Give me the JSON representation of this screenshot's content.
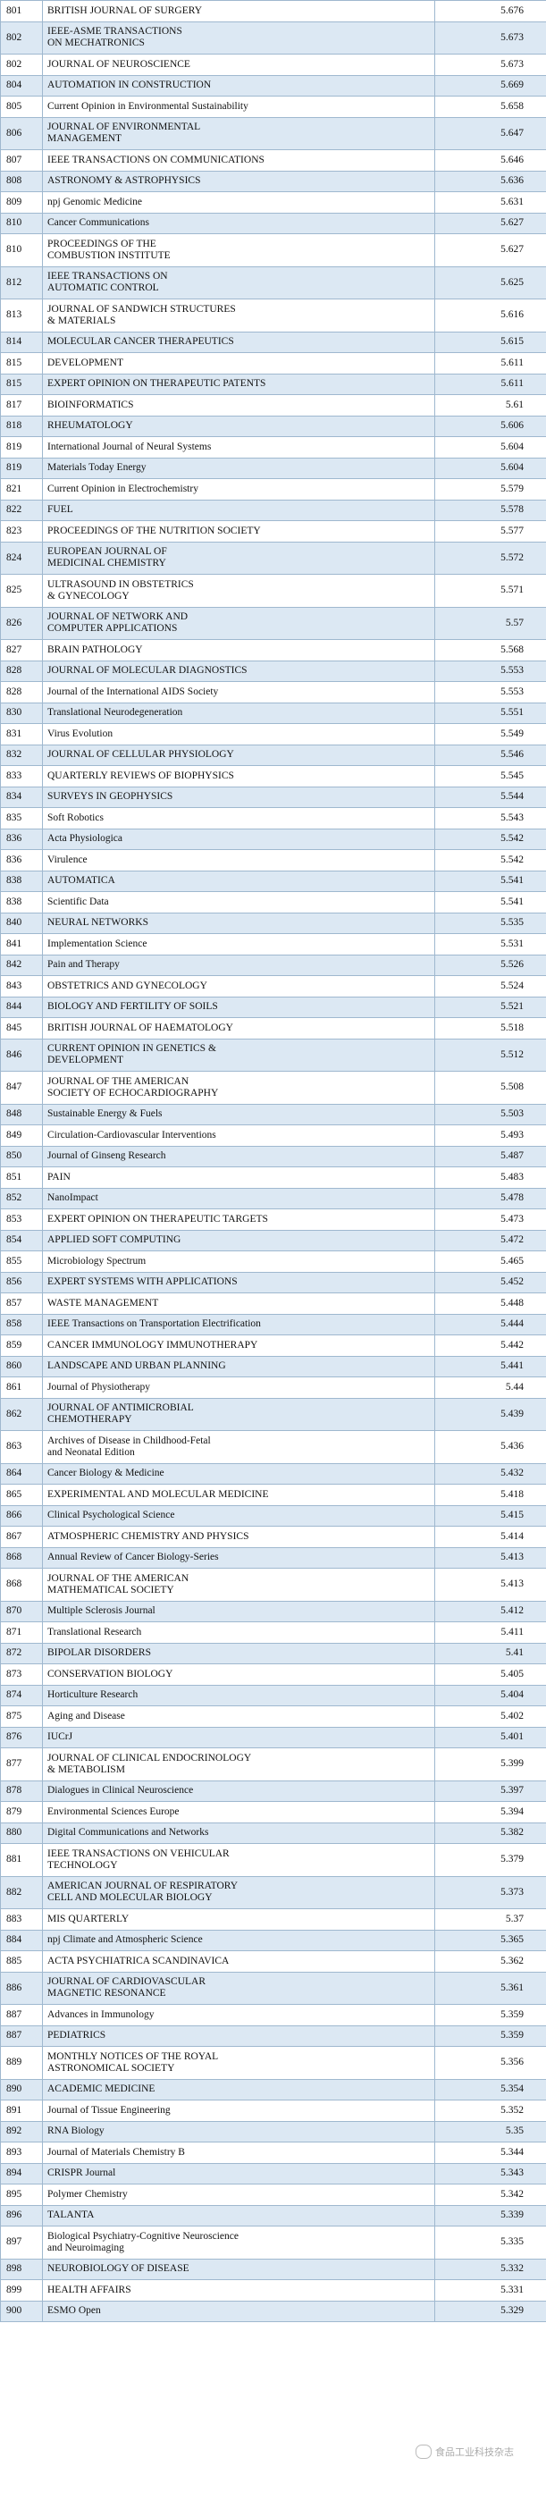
{
  "rows": [
    {
      "rank": "801",
      "name": "BRITISH JOURNAL OF SURGERY",
      "score": "5.676"
    },
    {
      "rank": "802",
      "name": "IEEE-ASME TRANSACTIONS\nON MECHATRONICS",
      "score": "5.673"
    },
    {
      "rank": "802",
      "name": "JOURNAL OF NEUROSCIENCE",
      "score": "5.673"
    },
    {
      "rank": "804",
      "name": "AUTOMATION IN CONSTRUCTION",
      "score": "5.669"
    },
    {
      "rank": "805",
      "name": "Current Opinion in Environmental Sustainability",
      "score": "5.658"
    },
    {
      "rank": "806",
      "name": "JOURNAL OF ENVIRONMENTAL\nMANAGEMENT",
      "score": "5.647"
    },
    {
      "rank": "807",
      "name": "IEEE TRANSACTIONS ON COMMUNICATIONS",
      "score": "5.646"
    },
    {
      "rank": "808",
      "name": "ASTRONOMY & ASTROPHYSICS",
      "score": "5.636"
    },
    {
      "rank": "809",
      "name": "npj Genomic Medicine",
      "score": "5.631"
    },
    {
      "rank": "810",
      "name": "Cancer Communications",
      "score": "5.627"
    },
    {
      "rank": "810",
      "name": "PROCEEDINGS OF THE\nCOMBUSTION INSTITUTE",
      "score": "5.627"
    },
    {
      "rank": "812",
      "name": "IEEE TRANSACTIONS ON\nAUTOMATIC CONTROL",
      "score": "5.625"
    },
    {
      "rank": "813",
      "name": "JOURNAL OF SANDWICH STRUCTURES\n& MATERIALS",
      "score": "5.616"
    },
    {
      "rank": "814",
      "name": "MOLECULAR CANCER THERAPEUTICS",
      "score": "5.615"
    },
    {
      "rank": "815",
      "name": "DEVELOPMENT",
      "score": "5.611"
    },
    {
      "rank": "815",
      "name": "EXPERT OPINION ON THERAPEUTIC PATENTS",
      "score": "5.611"
    },
    {
      "rank": "817",
      "name": "BIOINFORMATICS",
      "score": "5.61"
    },
    {
      "rank": "818",
      "name": "RHEUMATOLOGY",
      "score": "5.606"
    },
    {
      "rank": "819",
      "name": "International Journal of Neural Systems",
      "score": "5.604"
    },
    {
      "rank": "819",
      "name": "Materials Today Energy",
      "score": "5.604"
    },
    {
      "rank": "821",
      "name": "Current Opinion in Electrochemistry",
      "score": "5.579"
    },
    {
      "rank": "822",
      "name": "FUEL",
      "score": "5.578"
    },
    {
      "rank": "823",
      "name": "PROCEEDINGS OF THE NUTRITION SOCIETY",
      "score": "5.577"
    },
    {
      "rank": "824",
      "name": "EUROPEAN JOURNAL OF\nMEDICINAL CHEMISTRY",
      "score": "5.572"
    },
    {
      "rank": "825",
      "name": "ULTRASOUND IN OBSTETRICS\n& GYNECOLOGY",
      "score": "5.571"
    },
    {
      "rank": "826",
      "name": "JOURNAL OF NETWORK AND\nCOMPUTER APPLICATIONS",
      "score": "5.57"
    },
    {
      "rank": "827",
      "name": "BRAIN PATHOLOGY",
      "score": "5.568"
    },
    {
      "rank": "828",
      "name": "JOURNAL OF MOLECULAR DIAGNOSTICS",
      "score": "5.553"
    },
    {
      "rank": "828",
      "name": "Journal of the International AIDS Society",
      "score": "5.553"
    },
    {
      "rank": "830",
      "name": "Translational Neurodegeneration",
      "score": "5.551"
    },
    {
      "rank": "831",
      "name": "Virus Evolution",
      "score": "5.549"
    },
    {
      "rank": "832",
      "name": "JOURNAL OF CELLULAR PHYSIOLOGY",
      "score": "5.546"
    },
    {
      "rank": "833",
      "name": "QUARTERLY REVIEWS OF BIOPHYSICS",
      "score": "5.545"
    },
    {
      "rank": "834",
      "name": "SURVEYS IN GEOPHYSICS",
      "score": "5.544"
    },
    {
      "rank": "835",
      "name": "Soft Robotics",
      "score": "5.543"
    },
    {
      "rank": "836",
      "name": "Acta Physiologica",
      "score": "5.542"
    },
    {
      "rank": "836",
      "name": "Virulence",
      "score": "5.542"
    },
    {
      "rank": "838",
      "name": "AUTOMATICA",
      "score": "5.541"
    },
    {
      "rank": "838",
      "name": "Scientific Data",
      "score": "5.541"
    },
    {
      "rank": "840",
      "name": "NEURAL NETWORKS",
      "score": "5.535"
    },
    {
      "rank": "841",
      "name": "Implementation Science",
      "score": "5.531"
    },
    {
      "rank": "842",
      "name": "Pain and Therapy",
      "score": "5.526"
    },
    {
      "rank": "843",
      "name": "OBSTETRICS AND GYNECOLOGY",
      "score": "5.524"
    },
    {
      "rank": "844",
      "name": "BIOLOGY AND FERTILITY OF SOILS",
      "score": "5.521"
    },
    {
      "rank": "845",
      "name": "BRITISH JOURNAL OF HAEMATOLOGY",
      "score": "5.518"
    },
    {
      "rank": "846",
      "name": "CURRENT OPINION IN GENETICS &\nDEVELOPMENT",
      "score": "5.512"
    },
    {
      "rank": "847",
      "name": "JOURNAL OF THE AMERICAN\nSOCIETY OF ECHOCARDIOGRAPHY",
      "score": "5.508"
    },
    {
      "rank": "848",
      "name": "Sustainable Energy & Fuels",
      "score": "5.503"
    },
    {
      "rank": "849",
      "name": "Circulation-Cardiovascular Interventions",
      "score": "5.493"
    },
    {
      "rank": "850",
      "name": "Journal of Ginseng Research",
      "score": "5.487"
    },
    {
      "rank": "851",
      "name": "PAIN",
      "score": "5.483"
    },
    {
      "rank": "852",
      "name": "NanoImpact",
      "score": "5.478"
    },
    {
      "rank": "853",
      "name": "EXPERT OPINION ON THERAPEUTIC TARGETS",
      "score": "5.473"
    },
    {
      "rank": "854",
      "name": "APPLIED SOFT COMPUTING",
      "score": "5.472"
    },
    {
      "rank": "855",
      "name": "Microbiology Spectrum",
      "score": "5.465"
    },
    {
      "rank": "856",
      "name": "EXPERT SYSTEMS WITH APPLICATIONS",
      "score": "5.452"
    },
    {
      "rank": "857",
      "name": "WASTE MANAGEMENT",
      "score": "5.448"
    },
    {
      "rank": "858",
      "name": "IEEE Transactions on Transportation Electrification",
      "score": "5.444"
    },
    {
      "rank": "859",
      "name": "CANCER IMMUNOLOGY IMMUNOTHERAPY",
      "score": "5.442"
    },
    {
      "rank": "860",
      "name": "LANDSCAPE AND URBAN PLANNING",
      "score": "5.441"
    },
    {
      "rank": "861",
      "name": "Journal of Physiotherapy",
      "score": "5.44"
    },
    {
      "rank": "862",
      "name": "JOURNAL OF ANTIMICROBIAL\nCHEMOTHERAPY",
      "score": "5.439"
    },
    {
      "rank": "863",
      "name": "Archives of Disease in Childhood-Fetal\nand Neonatal Edition",
      "score": "5.436"
    },
    {
      "rank": "864",
      "name": "Cancer Biology & Medicine",
      "score": "5.432"
    },
    {
      "rank": "865",
      "name": "EXPERIMENTAL AND MOLECULAR MEDICINE",
      "score": "5.418"
    },
    {
      "rank": "866",
      "name": "Clinical Psychological Science",
      "score": "5.415"
    },
    {
      "rank": "867",
      "name": "ATMOSPHERIC CHEMISTRY AND PHYSICS",
      "score": "5.414"
    },
    {
      "rank": "868",
      "name": "Annual Review of Cancer Biology-Series",
      "score": "5.413"
    },
    {
      "rank": "868",
      "name": "JOURNAL OF THE AMERICAN\nMATHEMATICAL SOCIETY",
      "score": "5.413"
    },
    {
      "rank": "870",
      "name": "Multiple Sclerosis Journal",
      "score": "5.412"
    },
    {
      "rank": "871",
      "name": "Translational Research",
      "score": "5.411"
    },
    {
      "rank": "872",
      "name": "BIPOLAR DISORDERS",
      "score": "5.41"
    },
    {
      "rank": "873",
      "name": "CONSERVATION BIOLOGY",
      "score": "5.405"
    },
    {
      "rank": "874",
      "name": "Horticulture Research",
      "score": "5.404"
    },
    {
      "rank": "875",
      "name": "Aging and Disease",
      "score": "5.402"
    },
    {
      "rank": "876",
      "name": "IUCrJ",
      "score": "5.401"
    },
    {
      "rank": "877",
      "name": "JOURNAL OF CLINICAL ENDOCRINOLOGY\n& METABOLISM",
      "score": "5.399"
    },
    {
      "rank": "878",
      "name": "Dialogues in Clinical Neuroscience",
      "score": "5.397"
    },
    {
      "rank": "879",
      "name": "Environmental Sciences Europe",
      "score": "5.394"
    },
    {
      "rank": "880",
      "name": "Digital Communications and Networks",
      "score": "5.382"
    },
    {
      "rank": "881",
      "name": "IEEE TRANSACTIONS ON VEHICULAR\nTECHNOLOGY",
      "score": "5.379"
    },
    {
      "rank": "882",
      "name": "AMERICAN JOURNAL OF RESPIRATORY\nCELL AND MOLECULAR BIOLOGY",
      "score": "5.373"
    },
    {
      "rank": "883",
      "name": "MIS QUARTERLY",
      "score": "5.37"
    },
    {
      "rank": "884",
      "name": "npj Climate and Atmospheric Science",
      "score": "5.365"
    },
    {
      "rank": "885",
      "name": "ACTA PSYCHIATRICA SCANDINAVICA",
      "score": "5.362"
    },
    {
      "rank": "886",
      "name": "JOURNAL OF CARDIOVASCULAR\nMAGNETIC RESONANCE",
      "score": "5.361"
    },
    {
      "rank": "887",
      "name": "Advances in Immunology",
      "score": "5.359"
    },
    {
      "rank": "887",
      "name": "PEDIATRICS",
      "score": "5.359"
    },
    {
      "rank": "889",
      "name": "MONTHLY NOTICES OF THE ROYAL\nASTRONOMICAL SOCIETY",
      "score": "5.356"
    },
    {
      "rank": "890",
      "name": "ACADEMIC MEDICINE",
      "score": "5.354"
    },
    {
      "rank": "891",
      "name": "Journal of Tissue Engineering",
      "score": "5.352"
    },
    {
      "rank": "892",
      "name": "RNA Biology",
      "score": "5.35"
    },
    {
      "rank": "893",
      "name": "Journal of Materials Chemistry B",
      "score": "5.344"
    },
    {
      "rank": "894",
      "name": "CRISPR Journal",
      "score": "5.343"
    },
    {
      "rank": "895",
      "name": "Polymer Chemistry",
      "score": "5.342"
    },
    {
      "rank": "896",
      "name": "TALANTA",
      "score": "5.339"
    },
    {
      "rank": "897",
      "name": "Biological Psychiatry-Cognitive Neuroscience\nand Neuroimaging",
      "score": "5.335"
    },
    {
      "rank": "898",
      "name": "NEUROBIOLOGY OF DISEASE",
      "score": "5.332"
    },
    {
      "rank": "899",
      "name": "HEALTH AFFAIRS",
      "score": "5.331"
    },
    {
      "rank": "900",
      "name": "ESMO Open",
      "score": "5.329"
    }
  ],
  "colors": {
    "row_alt": "#dce8f3",
    "border": "#9fb8cf"
  },
  "watermark": {
    "text": "食品工业科技杂志",
    "icon": "wechat-icon"
  }
}
